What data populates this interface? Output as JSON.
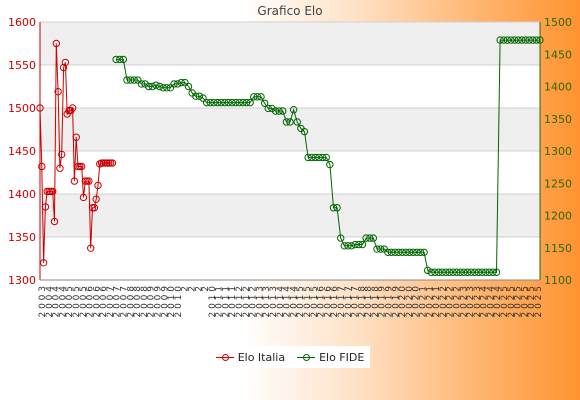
{
  "chart_data": {
    "type": "line",
    "title": "Grafico Elo",
    "y_left": {
      "min": 1300,
      "max": 1600,
      "ticks": [
        1300,
        1350,
        1400,
        1450,
        1500,
        1550,
        1600
      ]
    },
    "y_right": {
      "min": 1100,
      "max": 1500,
      "ticks": [
        1100,
        1150,
        1200,
        1250,
        1300,
        1350,
        1400,
        1450,
        1500
      ]
    },
    "grid": true,
    "legend_position": "bottom-center",
    "x_tick_labels": [
      "2 0 0 3",
      "2 0 0 4",
      "2 0 0 4",
      "2 0 0 4",
      "2 0 0 5",
      "2 0 0 5",
      "2 0 0 5",
      "2 0 0 6",
      "2 0 0 6",
      "2 0 0 6",
      "2 0 0 7",
      "2 0 0 7",
      "2 0 0 7",
      "2 0 0 8",
      "2 0 0 8",
      "2 0 0 8",
      "2 0 0 9",
      "2 0 0 9",
      "2 0 0 9",
      "2 0 1 0",
      "2 0 1 0",
      "2",
      "2",
      "2",
      "2",
      "2 0 1 0",
      "2 0 1 1",
      "2 0 1 1",
      "2 0 1 1",
      "2 0 1 2",
      "2 0 1 2",
      "2 0 1 2",
      "2 0 1 3",
      "2 0 1 3",
      "2 0 1 3",
      "2 0 1 4",
      "2 0 1 4",
      "2 0 1 4",
      "2 0 1 5",
      "2 0 1 5",
      "2 0 1 5",
      "2 0 1 6",
      "2 0 1 6",
      "2 0 1 6",
      "2 0 1 7",
      "2 0 1 7",
      "2 0 1 7",
      "2 0 1 8",
      "2 0 1 8",
      "2 0 1 8",
      "2 0 1 9",
      "2 0 1 9",
      "2 0 1 9",
      "2 0 2 0",
      "2 0 2 0",
      "2 0 2 0",
      "2 0 2 1",
      "2 0 2 1",
      "2 0 2 1",
      "2 0 2 2",
      "2 0 2 2",
      "2 0 2 2",
      "2 0 2 3",
      "2 0 2 3",
      "2 0 2 3",
      "2 0 2 4",
      "2 0 2 4",
      "2 0 2 4",
      "2 0 2 5",
      "2 0 2 5",
      "2 0 2 5",
      "2 0 2 5",
      "2 0 2 5",
      "2 0 2 5"
    ],
    "series": [
      {
        "name": "Elo Italia",
        "axis": "left",
        "color": "#cc0000",
        "x": [
          0,
          0.5,
          1,
          1.5,
          2,
          2.5,
          3,
          3.5,
          4,
          4.5,
          5,
          5.5,
          6,
          6.5,
          7,
          7.5,
          8,
          8.5,
          9,
          9.5,
          10,
          10.5,
          11,
          11.5,
          12,
          12.5,
          13,
          13.5,
          14,
          14.5,
          15,
          15.5,
          16,
          16.5,
          17,
          17.5,
          18,
          18.5,
          19,
          19.5,
          20
        ],
        "values": [
          1500,
          1432,
          1320,
          1385,
          1403,
          1403,
          1403,
          1403,
          1368,
          1575,
          1519,
          1430,
          1446,
          1547,
          1553,
          1493,
          1497,
          1497,
          1500,
          1415,
          1466,
          1432,
          1432,
          1432,
          1396,
          1415,
          1415,
          1415,
          1337,
          1384,
          1384,
          1394,
          1410,
          1435,
          1436,
          1436,
          1436,
          1436,
          1436,
          1436,
          1436
        ]
      },
      {
        "name": "Elo FIDE",
        "axis": "right",
        "color": "#006600",
        "x": [
          21,
          22,
          23,
          24,
          25,
          26,
          27,
          28,
          29,
          30,
          31,
          32,
          33,
          34,
          35,
          36,
          37,
          38,
          39,
          40,
          41,
          42,
          43,
          44,
          45,
          46,
          47,
          48,
          49,
          50,
          51,
          52,
          53,
          54,
          55,
          56,
          57,
          58,
          59,
          60,
          61,
          62,
          63,
          64,
          65,
          66,
          67,
          68,
          69,
          70,
          71,
          72,
          73,
          74,
          75,
          76,
          77,
          78,
          79,
          80,
          81,
          82,
          83,
          84,
          85,
          86,
          87,
          88,
          89,
          90,
          91,
          92,
          93,
          94,
          95,
          96,
          97,
          98,
          99,
          100,
          101,
          102,
          103,
          104,
          105,
          106,
          107,
          108,
          109,
          110,
          111,
          112,
          113,
          114,
          115,
          116,
          117,
          118,
          119,
          120,
          121,
          122,
          123,
          124,
          125,
          126,
          127,
          128,
          129,
          130,
          131,
          132,
          133,
          134,
          135,
          136,
          137,
          138
        ],
        "values": [
          1442,
          1442,
          1442,
          1410,
          1410,
          1410,
          1410,
          1404,
          1404,
          1400,
          1400,
          1402,
          1400,
          1398,
          1398,
          1398,
          1404,
          1404,
          1406,
          1406,
          1400,
          1390,
          1385,
          1385,
          1382,
          1375,
          1375,
          1375,
          1375,
          1375,
          1375,
          1375,
          1375,
          1375,
          1375,
          1375,
          1375,
          1375,
          1384,
          1384,
          1384,
          1374,
          1366,
          1366,
          1362,
          1362,
          1362,
          1345,
          1345,
          1364,
          1345,
          1335,
          1330,
          1290,
          1290,
          1290,
          1290,
          1290,
          1290,
          1279,
          1212,
          1212,
          1165,
          1153,
          1153,
          1153,
          1155,
          1155,
          1155,
          1165,
          1165,
          1165,
          1148,
          1148,
          1148,
          1143,
          1143,
          1143,
          1143,
          1143,
          1143,
          1143,
          1143,
          1143,
          1143,
          1143,
          1115,
          1112,
          1112,
          1112,
          1112,
          1112,
          1112,
          1112,
          1112,
          1112,
          1112,
          1112,
          1112,
          1112,
          1112,
          1112,
          1112,
          1112,
          1112,
          1112,
          1472,
          1472,
          1472,
          1472,
          1472,
          1472,
          1472,
          1472,
          1472,
          1472,
          1472,
          1472
        ]
      }
    ]
  },
  "legend": {
    "italia_label": "Elo Italia",
    "fide_label": "Elo FIDE"
  }
}
